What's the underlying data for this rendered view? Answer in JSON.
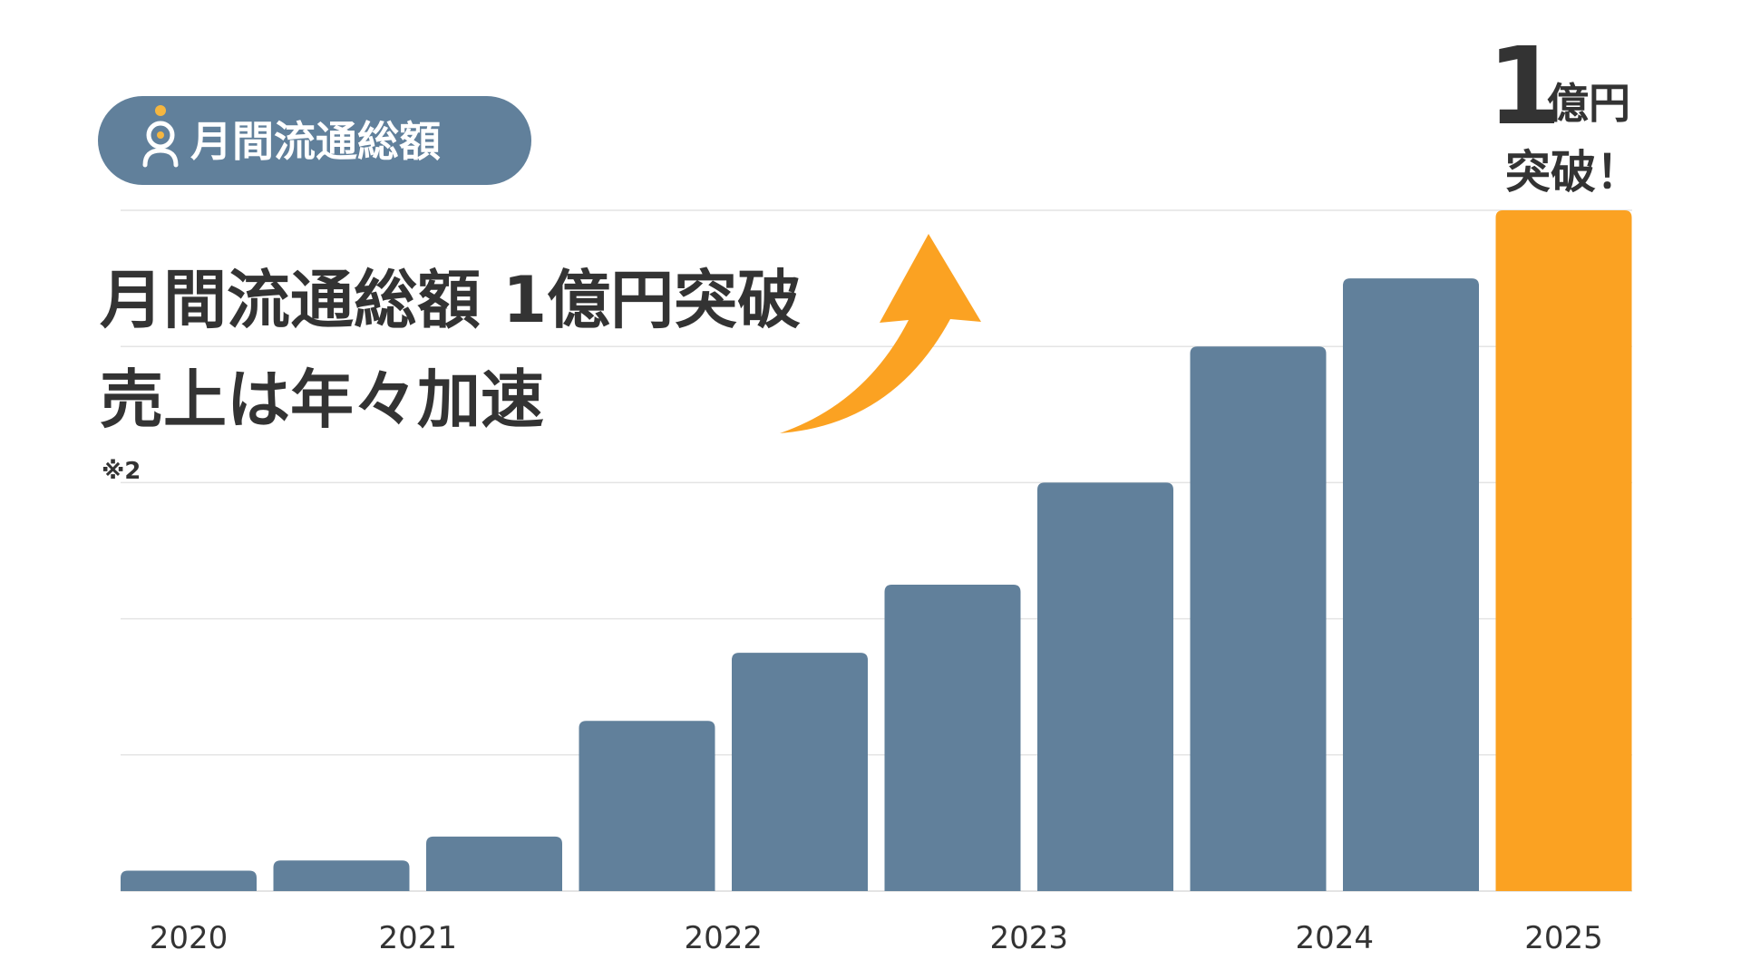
{
  "badge": {
    "label": "月間流通総額"
  },
  "headline": {
    "line1": "月間流通総額 1億円突破",
    "line2": "売上は年々加速",
    "note": "※2"
  },
  "callout": {
    "number": "1",
    "unit": "億円",
    "suffix": "突破！"
  },
  "colors": {
    "bar": "#61809B",
    "highlight": "#FBA222",
    "badge_bg": "#61809B",
    "text": "#333333",
    "grid": "#E4E4E4"
  },
  "chart_data": {
    "type": "bar",
    "title": "",
    "xlabel": "",
    "ylabel": "",
    "ylim": [
      0,
      100
    ],
    "grid": true,
    "x_ticks": [
      {
        "label": "2020",
        "after_bar": 0
      },
      {
        "label": "2021",
        "after_bar": 1.5
      },
      {
        "label": "2022",
        "after_bar": 3.5
      },
      {
        "label": "2023",
        "after_bar": 5.5
      },
      {
        "label": "2024",
        "after_bar": 7.5
      },
      {
        "label": "2025",
        "after_bar": 9
      }
    ],
    "values": [
      3,
      4.5,
      8,
      25,
      35,
      45,
      60,
      80,
      90,
      100
    ],
    "highlight_index": 9
  }
}
